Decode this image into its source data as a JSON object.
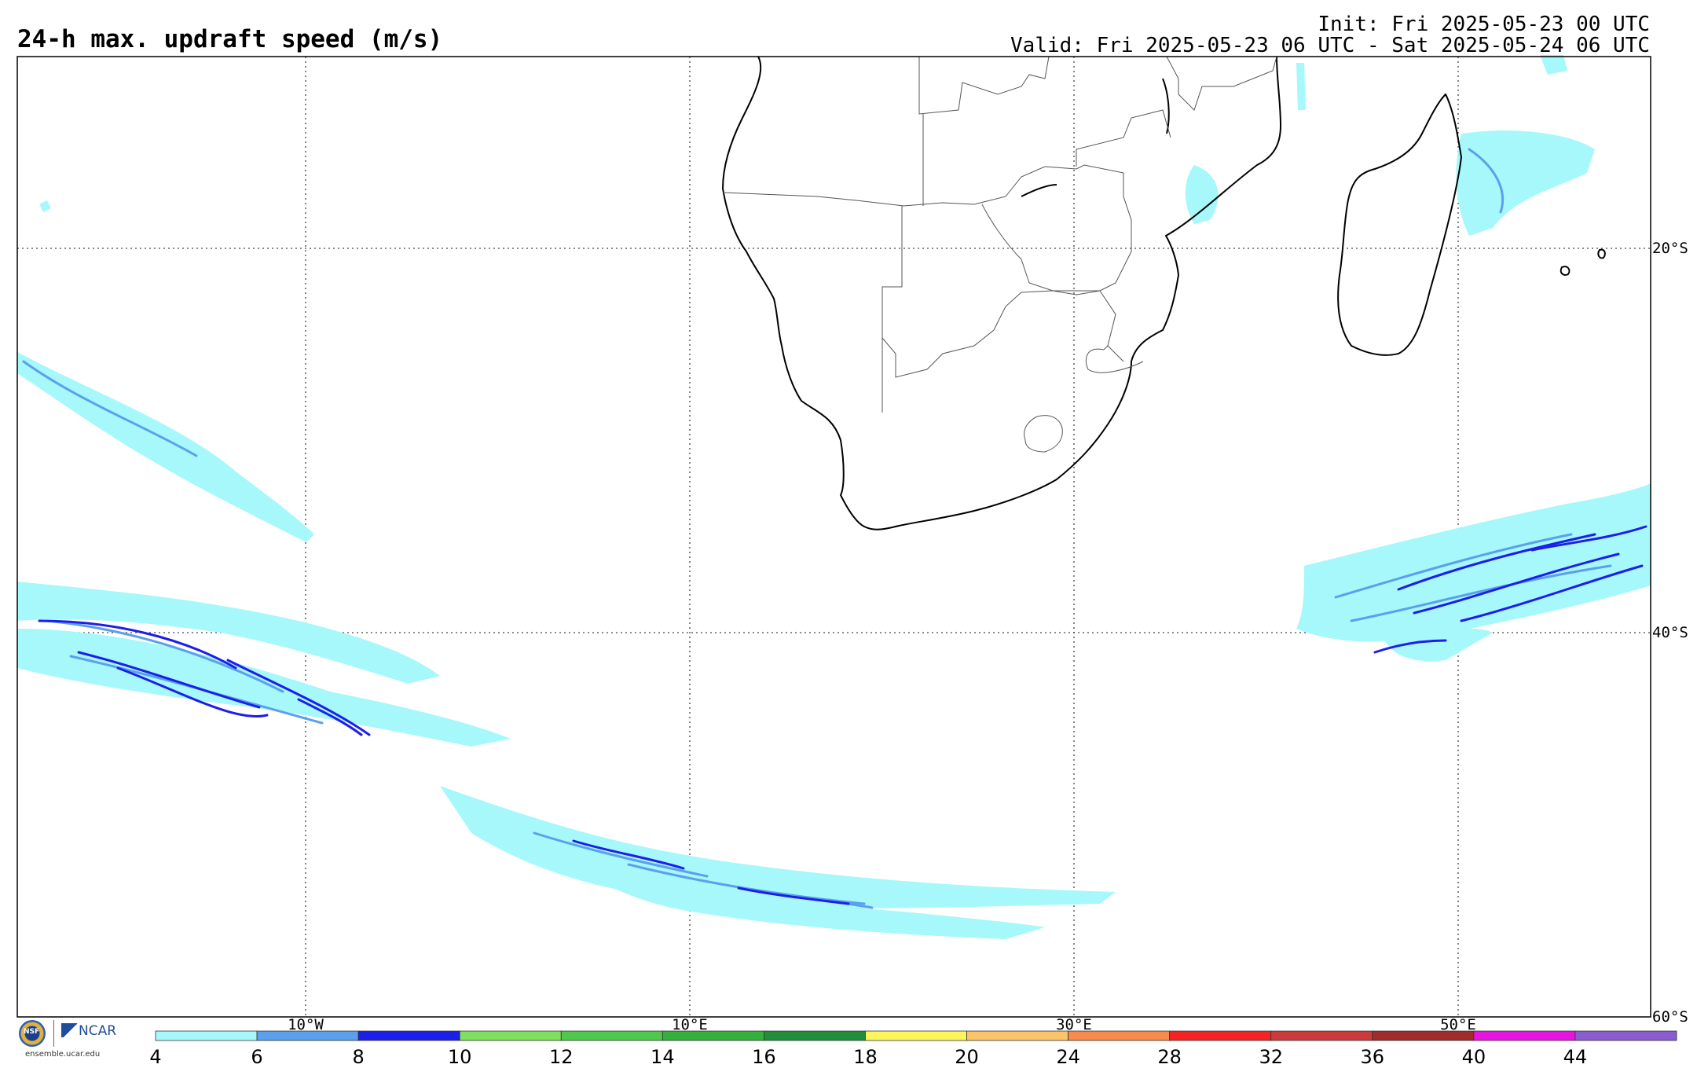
{
  "header": {
    "title": "24-h max. updraft speed (m/s)",
    "init": "Init: Fri 2025-05-23 00 UTC",
    "valid": "Valid: Fri 2025-05-23 06 UTC - Sat 2025-05-24 06 UTC"
  },
  "axes": {
    "lon_labels": [
      "10°W",
      "10°E",
      "30°E",
      "50°E"
    ],
    "lat_labels": [
      "20°S",
      "40°S",
      "60°S"
    ]
  },
  "colorbar": {
    "ticks": [
      "4",
      "6",
      "8",
      "10",
      "12",
      "14",
      "16",
      "18",
      "20",
      "24",
      "28",
      "32",
      "36",
      "40",
      "44"
    ],
    "colors": [
      "#a6f8fa",
      "#5ba0ee",
      "#1c1eea",
      "#7ee05c",
      "#4ec94c",
      "#34b03c",
      "#1f8f3a",
      "#fcf65a",
      "#fbc46a",
      "#f88a4c",
      "#f52424",
      "#cc3b3b",
      "#a02c2c",
      "#e614e0",
      "#8a5cd0"
    ]
  },
  "logos": {
    "nsf": "NSF",
    "ncar": "NCAR",
    "url": "ensemble.ucar.edu"
  },
  "icons": [
    "nsf-logo-icon",
    "ncar-logo-icon"
  ]
}
